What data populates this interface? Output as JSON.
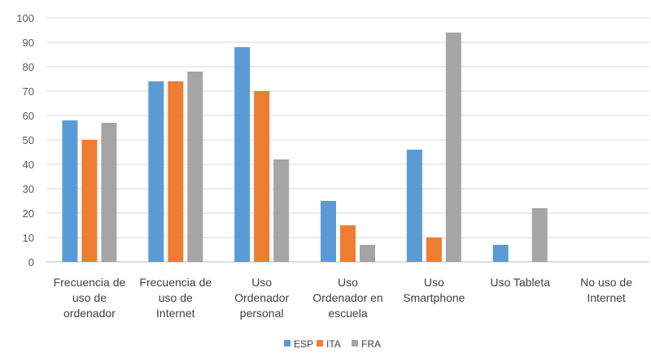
{
  "chart_data": {
    "type": "bar",
    "categories": [
      [
        "Frecuencia de",
        "uso de",
        "ordenador"
      ],
      [
        "Frecuencia de",
        "uso de",
        "Internet"
      ],
      [
        "Uso",
        "Ordenador",
        "personal"
      ],
      [
        "Uso",
        "Ordenador en",
        "escuela"
      ],
      [
        "Uso",
        "Smartphone"
      ],
      [
        "Uso Tableta"
      ],
      [
        "No uso de",
        "Internet"
      ]
    ],
    "series": [
      {
        "name": "ESP",
        "color": "#5b9bd5",
        "values": [
          58,
          74,
          88,
          25,
          46,
          7,
          0
        ]
      },
      {
        "name": "ITA",
        "color": "#ed7d31",
        "values": [
          50,
          74,
          70,
          15,
          10,
          0,
          0
        ]
      },
      {
        "name": "FRA",
        "color": "#a5a5a5",
        "values": [
          57,
          78,
          42,
          7,
          94,
          22,
          0
        ]
      }
    ],
    "ylim": [
      0,
      100
    ],
    "yticks": [
      0,
      10,
      20,
      30,
      40,
      50,
      60,
      70,
      80,
      90,
      100
    ],
    "grid": true,
    "legend_position": "bottom"
  }
}
